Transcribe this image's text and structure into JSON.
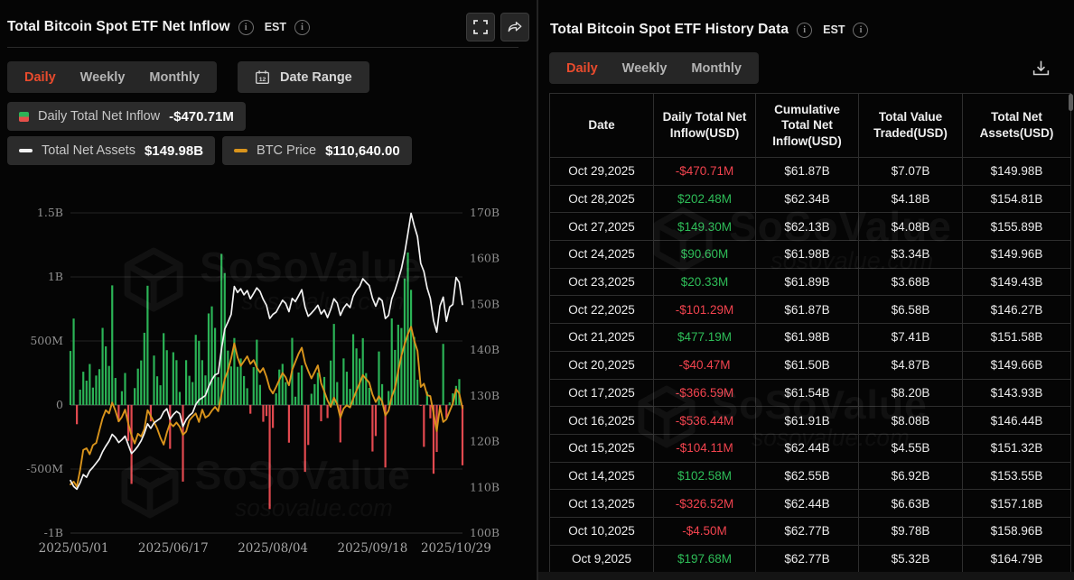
{
  "left_panel": {
    "title": "Total Bitcoin Spot ETF Net Inflow",
    "timezone": "EST",
    "tabs": {
      "items": [
        "Daily",
        "Weekly",
        "Monthly"
      ],
      "active": "Daily"
    },
    "date_range_label": "Date Range",
    "calendar_icon_day": "12",
    "legend": {
      "inflow_label": "Daily Total Net Inflow",
      "inflow_value": "-$470.71M",
      "assets_label": "Total Net Assets",
      "assets_value": "$149.98B",
      "btc_label": "BTC Price",
      "btc_value": "$110,640.00"
    }
  },
  "right_panel": {
    "title": "Total Bitcoin Spot ETF History Data",
    "timezone": "EST",
    "tabs": {
      "items": [
        "Daily",
        "Weekly",
        "Monthly"
      ],
      "active": "Daily"
    },
    "table": {
      "columns": [
        "Date",
        "Daily Total Net Inflow(USD)",
        "Cumulative Total Net Inflow(USD)",
        "Total Value Traded(USD)",
        "Total Net Assets(USD)"
      ],
      "rows": [
        [
          "Oct 29,2025",
          "-$470.71M",
          "$61.87B",
          "$7.07B",
          "$149.98B"
        ],
        [
          "Oct 28,2025",
          "$202.48M",
          "$62.34B",
          "$4.18B",
          "$154.81B"
        ],
        [
          "Oct 27,2025",
          "$149.30M",
          "$62.13B",
          "$4.08B",
          "$155.89B"
        ],
        [
          "Oct 24,2025",
          "$90.60M",
          "$61.98B",
          "$3.34B",
          "$149.96B"
        ],
        [
          "Oct 23,2025",
          "$20.33M",
          "$61.89B",
          "$3.68B",
          "$149.43B"
        ],
        [
          "Oct 22,2025",
          "-$101.29M",
          "$61.87B",
          "$6.58B",
          "$146.27B"
        ],
        [
          "Oct 21,2025",
          "$477.19M",
          "$61.98B",
          "$7.41B",
          "$151.58B"
        ],
        [
          "Oct 20,2025",
          "-$40.47M",
          "$61.50B",
          "$4.87B",
          "$149.66B"
        ],
        [
          "Oct 17,2025",
          "-$366.59M",
          "$61.54B",
          "$8.20B",
          "$143.93B"
        ],
        [
          "Oct 16,2025",
          "-$536.44M",
          "$61.91B",
          "$8.08B",
          "$146.44B"
        ],
        [
          "Oct 15,2025",
          "-$104.11M",
          "$62.44B",
          "$4.55B",
          "$151.32B"
        ],
        [
          "Oct 14,2025",
          "$102.58M",
          "$62.55B",
          "$6.92B",
          "$153.55B"
        ],
        [
          "Oct 13,2025",
          "-$326.52M",
          "$62.44B",
          "$6.63B",
          "$157.18B"
        ],
        [
          "Oct 10,2025",
          "-$4.50M",
          "$62.77B",
          "$9.78B",
          "$158.96B"
        ],
        [
          "Oct 9,2025",
          "$197.68M",
          "$62.77B",
          "$5.32B",
          "$164.79B"
        ]
      ]
    }
  },
  "watermark": {
    "brand": "SoSoValue",
    "domain_text": "sosovalue.com"
  },
  "colors": {
    "background": "#050505",
    "panel_chrome": "#262626",
    "active_tab_red": "#e94b2d",
    "bar_green": "#2bb356",
    "bar_red": "#e2494f",
    "text_green": "#2ebd58",
    "text_red": "#f2434e",
    "assets_line": "#f2f2f2",
    "btc_line": "#d9941c",
    "axis_label": "#8f8f8f"
  },
  "chart_data": {
    "type": "combo",
    "title": "Total Bitcoin Spot ETF Net Inflow — Daily",
    "x_range": [
      "2025/05/01",
      "2025/10/29"
    ],
    "x_tick_labels": [
      "2025/05/01",
      "2025/06/17",
      "2025/08/04",
      "2025/09/18",
      "2025/10/29"
    ],
    "x_tick_indices": [
      1,
      32,
      63,
      94,
      120
    ],
    "grid": true,
    "left_axis": {
      "title": "Daily Net Inflow (USD, millions)",
      "range": [
        -1000,
        1500
      ],
      "ticks": [
        {
          "label": "1.5B",
          "value": 1500
        },
        {
          "label": "1B",
          "value": 1000
        },
        {
          "label": "500M",
          "value": 500
        },
        {
          "label": "0",
          "value": 0
        },
        {
          "label": "-500M",
          "value": -500
        },
        {
          "label": "-1B",
          "value": -1000
        }
      ]
    },
    "right_axis": {
      "title": "Total Net Assets (USD, billions)",
      "range": [
        100,
        170
      ],
      "ticks": [
        {
          "label": "170B",
          "value": 170
        },
        {
          "label": "160B",
          "value": 160
        },
        {
          "label": "150B",
          "value": 150
        },
        {
          "label": "140B",
          "value": 140
        },
        {
          "label": "130B",
          "value": 130
        },
        {
          "label": "120B",
          "value": 120
        },
        {
          "label": "110B",
          "value": 110
        },
        {
          "label": "100B",
          "value": 100
        }
      ]
    },
    "series": [
      {
        "name": "Daily Total Net Inflow",
        "type": "bar",
        "unit": "USD millions",
        "values": [
          422,
          675,
          -150,
          120,
          260,
          190,
          320,
          136,
          230,
          280,
          602,
          458,
          305,
          934,
          211,
          -130,
          108,
          250,
          -280,
          -616,
          132,
          284,
          348,
          564,
          931,
          -128,
          386,
          224,
          154,
          561,
          428,
          -342,
          412,
          350,
          102,
          -598,
          350,
          228,
          179,
          548,
          501,
          350,
          231,
          715,
          770,
          602,
          217,
          1180,
          1030,
          425,
          301,
          523,
          298,
          363,
          226,
          131,
          -68,
          296,
          510,
          157,
          -131,
          -86,
          -812,
          -179,
          91,
          277,
          321,
          178,
          -294,
          524,
          65,
          254,
          309,
          -522,
          -312,
          88,
          163,
          252,
          -127,
          219,
          -102,
          347,
          633,
          179,
          -292,
          364,
          260,
          126,
          553,
          442,
          363,
          522,
          249,
          134,
          -363,
          -242,
          418,
          163,
          -488,
          109,
          676,
          430,
          627,
          601,
          988,
          1191,
          899,
          531,
          197.68,
          -4.5,
          -326.52,
          102.58,
          -104.11,
          -536.44,
          -366.59,
          -40.47,
          477.19,
          -101.29,
          20.33,
          90.6,
          149.3,
          202.48,
          -470.71
        ]
      },
      {
        "name": "Total Net Assets",
        "type": "line",
        "unit": "USD billions",
        "values": [
          111.5,
          110.2,
          109.6,
          111.0,
          112.8,
          112.2,
          113.6,
          114.4,
          115.3,
          116.2,
          117.8,
          119.0,
          120.1,
          121.6,
          120.9,
          119.8,
          120.4,
          121.2,
          119.3,
          117.4,
          118.1,
          119.0,
          120.2,
          121.8,
          123.9,
          122.9,
          124.1,
          124.6,
          125.1,
          126.5,
          127.2,
          124.9,
          125.9,
          126.6,
          126.1,
          123.3,
          124.8,
          125.7,
          126.3,
          128.1,
          129.1,
          129.6,
          130.1,
          132.0,
          133.5,
          134.6,
          134.9,
          140.2,
          144.6,
          146.1,
          147.8,
          153.9,
          152.6,
          153.4,
          152.1,
          153.0,
          151.2,
          152.4,
          153.6,
          152.8,
          151.1,
          149.8,
          146.9,
          147.8,
          148.3,
          149.6,
          150.9,
          150.2,
          148.4,
          151.3,
          150.6,
          151.9,
          153.2,
          149.4,
          147.4,
          148.1,
          148.9,
          149.8,
          147.9,
          148.8,
          147.1,
          148.9,
          151.2,
          150.3,
          147.6,
          149.2,
          150.1,
          149.3,
          151.8,
          153.1,
          153.9,
          155.6,
          154.8,
          154.1,
          151.3,
          149.6,
          151.4,
          150.8,
          146.9,
          147.6,
          151.2,
          153.1,
          155.4,
          157.8,
          161.2,
          165.4,
          169.9,
          167.2,
          164.79,
          158.96,
          157.18,
          153.55,
          151.32,
          146.44,
          143.93,
          149.66,
          151.58,
          146.27,
          149.43,
          149.96,
          155.89,
          154.81,
          149.98
        ]
      },
      {
        "name": "BTC Price",
        "type": "line",
        "unit": "USD thousands",
        "values": [
          96.5,
          97.0,
          96.1,
          99.2,
          102.9,
          103.2,
          102.1,
          103.8,
          104.2,
          106.5,
          108.8,
          110.3,
          109.7,
          111.7,
          110.2,
          108.2,
          109.0,
          110.4,
          107.8,
          105.6,
          104.1,
          105.9,
          105.4,
          106.8,
          110.3,
          109.2,
          108.1,
          106.9,
          105.2,
          103.9,
          106.1,
          107.9,
          107.3,
          108.0,
          107.2,
          105.7,
          106.3,
          108.4,
          109.1,
          109.7,
          108.1,
          110.4,
          108.9,
          109.3,
          110.2,
          110.9,
          110.1,
          113.2,
          116.1,
          117.6,
          119.9,
          122.7,
          120.1,
          118.5,
          119.4,
          120.3,
          118.9,
          119.6,
          118.2,
          117.3,
          118.1,
          116.5,
          114.3,
          113.4,
          114.6,
          115.9,
          117.2,
          116.4,
          114.9,
          117.8,
          119.3,
          120.8,
          121.9,
          119.1,
          117.6,
          116.2,
          117.4,
          118.6,
          115.3,
          113.8,
          112.1,
          110.9,
          112.6,
          111.4,
          108.9,
          110.6,
          111.2,
          110.8,
          112.4,
          113.9,
          115.3,
          116.8,
          116.1,
          115.4,
          113.2,
          111.8,
          112.9,
          111.9,
          109.3,
          110.2,
          112.8,
          114.4,
          117.6,
          120.4,
          122.6,
          124.4,
          125.8,
          123.2,
          121.3,
          114.6,
          115.2,
          113.1,
          112.9,
          109.7,
          106.4,
          110.9,
          108.1,
          108.6,
          110.1,
          111.5,
          114.2,
          113.4,
          110.64
        ]
      }
    ]
  }
}
